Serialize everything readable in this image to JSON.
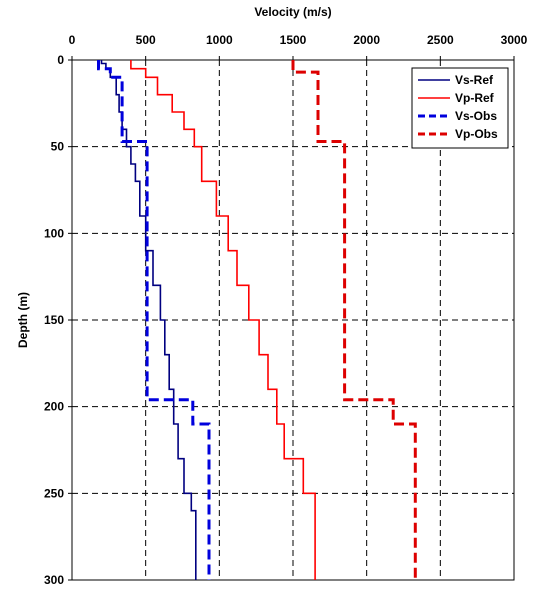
{
  "chart_data": {
    "type": "line",
    "xlabel": "Velocity (m/s)",
    "ylabel": "Depth (m)",
    "xlim": [
      0,
      3000
    ],
    "ylim": [
      0,
      300
    ],
    "y_inverted": true,
    "x_axis_position": "top",
    "x_ticks": [
      0,
      500,
      1000,
      1500,
      2000,
      2500,
      3000
    ],
    "y_ticks": [
      0,
      50,
      100,
      150,
      200,
      250,
      300
    ],
    "grid": "dashed, at major ticks",
    "legend_placement": "top-right",
    "series": [
      {
        "name": "Vs-Ref",
        "color": "#000080",
        "style": "solid",
        "points": [
          [
            200,
            0
          ],
          [
            200,
            2
          ],
          [
            230,
            2
          ],
          [
            230,
            5
          ],
          [
            260,
            5
          ],
          [
            260,
            10
          ],
          [
            300,
            10
          ],
          [
            300,
            20
          ],
          [
            320,
            20
          ],
          [
            320,
            30
          ],
          [
            340,
            30
          ],
          [
            340,
            40
          ],
          [
            370,
            40
          ],
          [
            370,
            50
          ],
          [
            400,
            50
          ],
          [
            400,
            60
          ],
          [
            430,
            60
          ],
          [
            430,
            70
          ],
          [
            460,
            70
          ],
          [
            460,
            90
          ],
          [
            500,
            90
          ],
          [
            500,
            110
          ],
          [
            550,
            110
          ],
          [
            550,
            130
          ],
          [
            600,
            130
          ],
          [
            600,
            150
          ],
          [
            630,
            150
          ],
          [
            630,
            170
          ],
          [
            660,
            170
          ],
          [
            660,
            190
          ],
          [
            690,
            190
          ],
          [
            690,
            210
          ],
          [
            720,
            210
          ],
          [
            720,
            230
          ],
          [
            760,
            230
          ],
          [
            760,
            250
          ],
          [
            810,
            250
          ],
          [
            810,
            260
          ],
          [
            840,
            260
          ],
          [
            840,
            300
          ]
        ]
      },
      {
        "name": "Vp-Ref",
        "color": "#ff0000",
        "style": "solid",
        "points": [
          [
            400,
            0
          ],
          [
            400,
            5
          ],
          [
            500,
            5
          ],
          [
            500,
            10
          ],
          [
            580,
            10
          ],
          [
            580,
            20
          ],
          [
            680,
            20
          ],
          [
            680,
            30
          ],
          [
            760,
            30
          ],
          [
            760,
            40
          ],
          [
            830,
            40
          ],
          [
            830,
            50
          ],
          [
            880,
            50
          ],
          [
            880,
            70
          ],
          [
            980,
            70
          ],
          [
            980,
            90
          ],
          [
            1060,
            90
          ],
          [
            1060,
            110
          ],
          [
            1120,
            110
          ],
          [
            1120,
            130
          ],
          [
            1200,
            130
          ],
          [
            1200,
            150
          ],
          [
            1270,
            150
          ],
          [
            1270,
            170
          ],
          [
            1330,
            170
          ],
          [
            1330,
            190
          ],
          [
            1390,
            190
          ],
          [
            1390,
            210
          ],
          [
            1440,
            210
          ],
          [
            1440,
            230
          ],
          [
            1570,
            230
          ],
          [
            1570,
            250
          ],
          [
            1650,
            250
          ],
          [
            1650,
            300
          ]
        ]
      },
      {
        "name": "Vs-Obs",
        "color": "#0000dd",
        "style": "dashed",
        "points": [
          [
            180,
            0
          ],
          [
            180,
            5
          ],
          [
            260,
            5
          ],
          [
            260,
            10
          ],
          [
            340,
            10
          ],
          [
            340,
            47
          ],
          [
            510,
            47
          ],
          [
            510,
            196
          ],
          [
            820,
            196
          ],
          [
            820,
            210
          ],
          [
            930,
            210
          ],
          [
            930,
            300
          ]
        ]
      },
      {
        "name": "Vp-Obs",
        "color": "#dd0000",
        "style": "dashed",
        "points": [
          [
            1500,
            0
          ],
          [
            1500,
            7
          ],
          [
            1670,
            7
          ],
          [
            1670,
            47
          ],
          [
            1850,
            47
          ],
          [
            1850,
            196
          ],
          [
            2180,
            196
          ],
          [
            2180,
            210
          ],
          [
            2330,
            210
          ],
          [
            2330,
            300
          ]
        ]
      }
    ]
  }
}
